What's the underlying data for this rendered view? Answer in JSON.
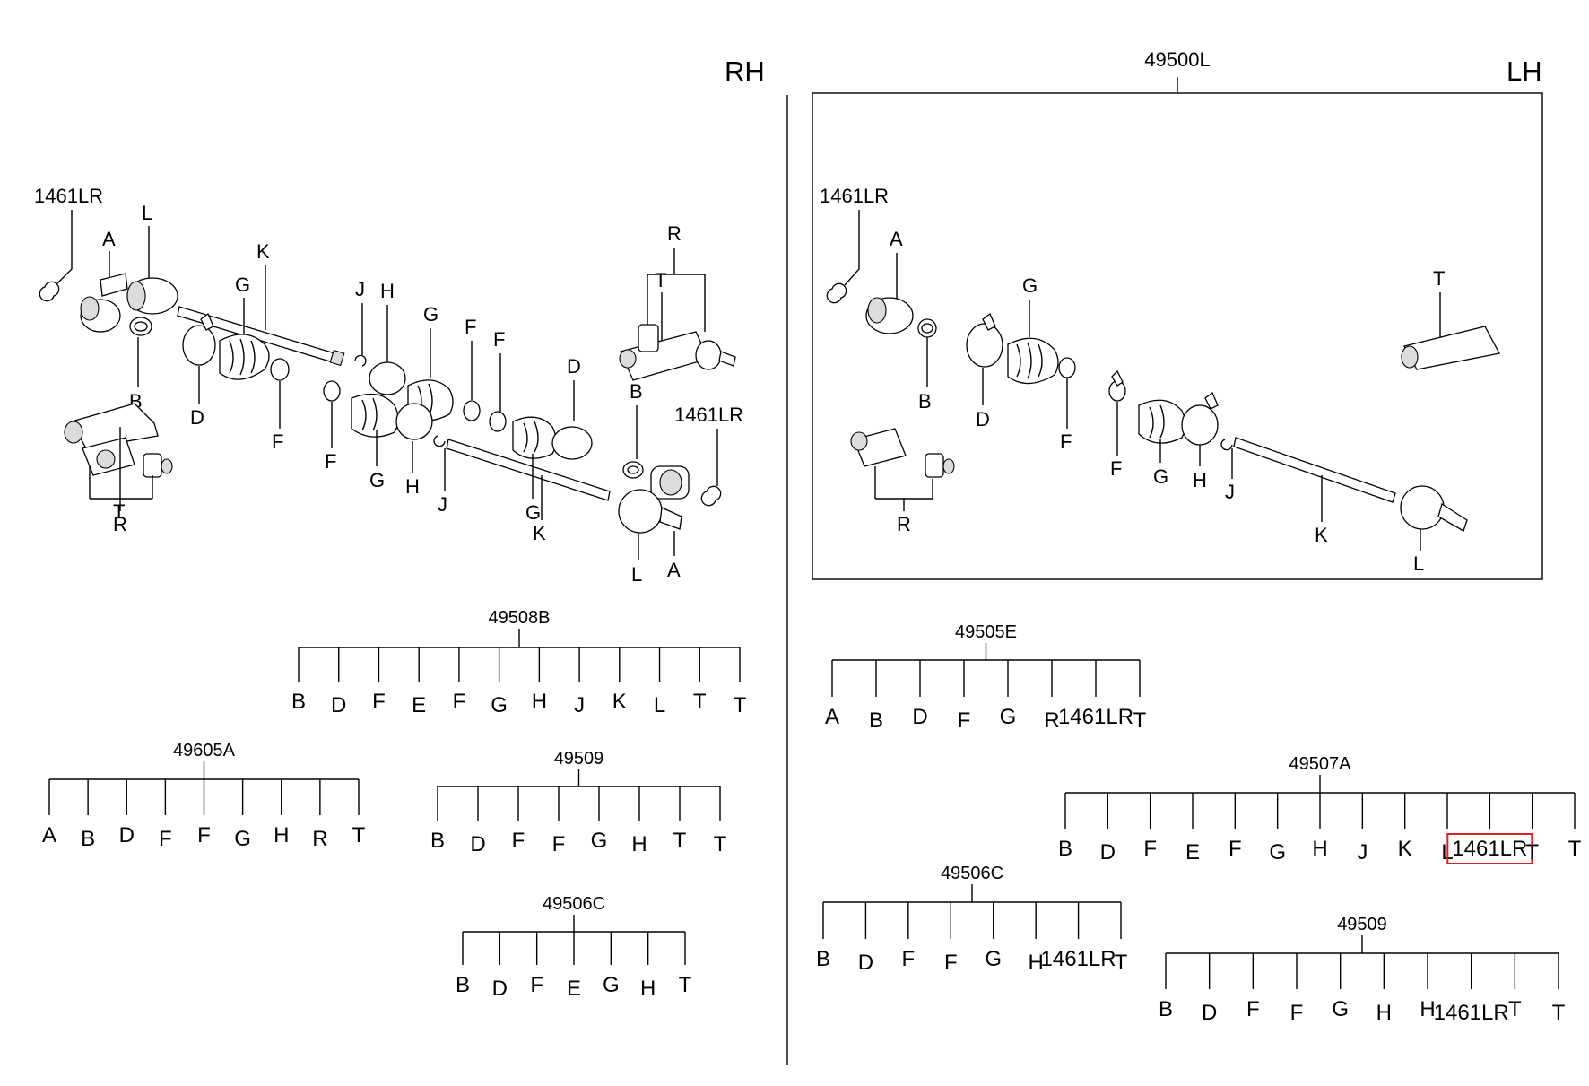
{
  "colors": {
    "highlight": "#e02020",
    "ink": "#000000"
  },
  "side_labels": {
    "rh": "RH",
    "lh": "LH"
  },
  "assembly_label": "49500L",
  "rh_callouts": {
    "snap_ring_left": "1461LR",
    "a_top": "A",
    "l_top": "L",
    "k_top": "K",
    "g_top": "G",
    "j_top": "J",
    "h_top": "H",
    "g_mid": "G",
    "f_mid1": "F",
    "f_mid2": "F",
    "d_right": "D",
    "r_right": "R",
    "t_right": "T",
    "b_right": "B",
    "snap_ring_right": "1461LR",
    "b_left": "B",
    "d_left": "D",
    "f_left": "F",
    "f_left2": "F",
    "g_low": "G",
    "h_low": "H",
    "j_low": "J",
    "g_low2": "G",
    "k_low": "K",
    "l_low": "L",
    "a_low": "A",
    "t_left": "T",
    "r_left": "R"
  },
  "lh_callouts": {
    "snap_ring": "1461LR",
    "a": "A",
    "g": "G",
    "t_tube": "T",
    "b": "B",
    "d": "D",
    "f1": "F",
    "f2": "F",
    "g2": "G",
    "h": "H",
    "j": "J",
    "k": "K",
    "l": "L",
    "r": "R"
  },
  "trees": [
    {
      "id": "49508B",
      "title": "49508B",
      "leaves": [
        "B",
        "D",
        "F",
        "E",
        "F",
        "G",
        "H",
        "J",
        "K",
        "L",
        "T",
        "T"
      ]
    },
    {
      "id": "49605A",
      "title": "49605A",
      "leaves": [
        "A",
        "B",
        "D",
        "F",
        "F",
        "G",
        "H",
        "R",
        "T"
      ]
    },
    {
      "id": "49509-rh",
      "title": "49509",
      "leaves": [
        "B",
        "D",
        "F",
        "F",
        "G",
        "H",
        "T",
        "T"
      ]
    },
    {
      "id": "49506C-rh",
      "title": "49506C",
      "leaves": [
        "B",
        "D",
        "F",
        "E",
        "G",
        "H",
        "T"
      ]
    },
    {
      "id": "49505E",
      "title": "49505E",
      "leaves": [
        "A",
        "B",
        "D",
        "F",
        "G",
        "R",
        "1461LR",
        "T"
      ]
    },
    {
      "id": "49507A",
      "title": "49507A",
      "leaves": [
        "B",
        "D",
        "F",
        "E",
        "F",
        "G",
        "H",
        "J",
        "K",
        "L",
        "1461LR",
        "T",
        "T"
      ],
      "highlight_index": 10
    },
    {
      "id": "49506C-lh",
      "title": "49506C",
      "leaves": [
        "B",
        "D",
        "F",
        "F",
        "G",
        "H",
        "1461LR",
        "T"
      ]
    },
    {
      "id": "49509-lh",
      "title": "49509",
      "leaves": [
        "B",
        "D",
        "F",
        "F",
        "G",
        "H",
        "H",
        "1461LR",
        "T",
        "T"
      ]
    }
  ]
}
